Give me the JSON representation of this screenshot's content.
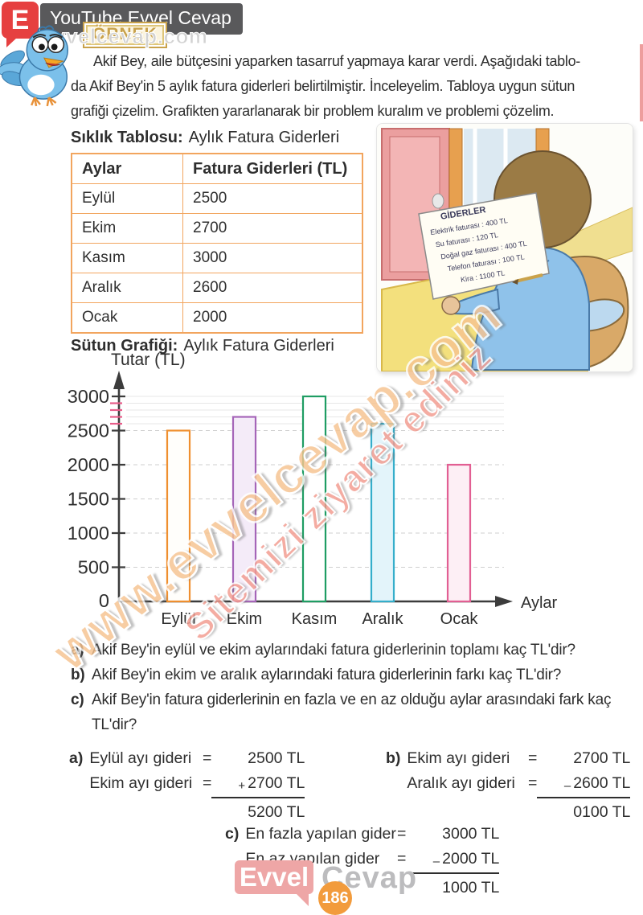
{
  "header": {
    "logo_letter": "E",
    "banner_title": "YouTube Evvel Cevap",
    "badge_label": "ÖRNEK"
  },
  "watermark": {
    "small": "evvelcevap.com",
    "line1": "www.evvelcevap.com",
    "line2": "Sitemizi ziyaret ediniz"
  },
  "intro": {
    "lines": [
      "Akif Bey, aile bütçesini yaparken tasarruf yapmaya karar verdi. Aşağıdaki tablo-",
      "da Akif Bey'in 5 aylık fatura giderleri belirtilmiştir. İnceleyelim. Tabloya uygun sütun",
      "grafiği çizelim. Grafikten yararlanarak bir problem kuralım ve problemi çözelim."
    ]
  },
  "table_section": {
    "title_bold": "Sıklık Tablosu:",
    "title_rest": "Aylık Fatura Giderleri",
    "headers": [
      "Aylar",
      "Fatura Giderleri (TL)"
    ],
    "rows": [
      [
        "Eylül",
        "2500"
      ],
      [
        "Ekim",
        "2700"
      ],
      [
        "Kasım",
        "3000"
      ],
      [
        "Aralık",
        "2600"
      ],
      [
        "Ocak",
        "2000"
      ]
    ]
  },
  "illustration": {
    "paper_title": "GİDERLER",
    "paper_lines": [
      "Elektrik faturası : 400 TL",
      "Su faturası : 120 TL",
      "Doğal gaz faturası : 400 TL",
      "Telefon faturası : 100 TL",
      "Kira : 1100 TL"
    ]
  },
  "chart_section": {
    "title_bold": "Sütun Grafiği:",
    "title_rest": "Aylık Fatura Giderleri"
  },
  "chart_data": {
    "type": "bar",
    "title": "Sütun Grafiği: Aylık Fatura Giderleri",
    "categories": [
      "Eylül",
      "Ekim",
      "Kasım",
      "Aralık",
      "Ocak"
    ],
    "values": [
      2500,
      2700,
      3000,
      2600,
      2000
    ],
    "bar_colors": [
      {
        "stroke": "#ef8f2f",
        "fill": "#fffefb"
      },
      {
        "stroke": "#a565b8",
        "fill": "#f4ebf8"
      },
      {
        "stroke": "#1f9d63",
        "fill": "#ffffff"
      },
      {
        "stroke": "#35aecb",
        "fill": "#e3f4fa"
      },
      {
        "stroke": "#e25f93",
        "fill": "#fdeff5"
      }
    ],
    "ylabel": "Tutar (TL)",
    "xlabel": "Aylar",
    "ylim": [
      0,
      3000
    ],
    "ytick_step": 500,
    "minor_ticks": [
      2600,
      2700,
      2800,
      2900
    ],
    "minor_tick_color": "#e85d8a",
    "grid": true,
    "legend": false
  },
  "questions": [
    {
      "label": "a)",
      "text": "Akif Bey'in eylül ve ekim aylarındaki fatura giderlerinin toplamı kaç TL'dir?"
    },
    {
      "label": "b)",
      "text": "Akif Bey'in ekim ve aralık aylarındaki fatura giderlerinin farkı kaç TL'dir?"
    },
    {
      "label": "c)",
      "text": "Akif Bey'in fatura giderlerinin en fazla ve en az olduğu aylar arasındaki fark kaç TL'dir?"
    }
  ],
  "solutions": {
    "eq": "=",
    "a": {
      "label": "a)",
      "row1_label": "Eylül ayı gideri",
      "row1_value": "2500 TL",
      "row2_label": "Ekim ayı gideri",
      "op": "+",
      "row2_value": "2700 TL",
      "result": "5200 TL"
    },
    "b": {
      "label": "b)",
      "row1_label": "Ekim ayı gideri",
      "row1_value": "2700 TL",
      "row2_label": "Aralık ayı gideri",
      "op": "–",
      "row2_value": "2600 TL",
      "result": "0100 TL"
    },
    "c": {
      "label": "c)",
      "row1_label": "En fazla yapılan gider",
      "row1_value": "3000 TL",
      "row2_label": "En az yapılan gider",
      "op": "–",
      "row2_value": "2000 TL",
      "result": "1000 TL"
    }
  },
  "footer": {
    "brand_primary": "Evvel",
    "brand_secondary": "Cevap",
    "page_number": "186"
  }
}
